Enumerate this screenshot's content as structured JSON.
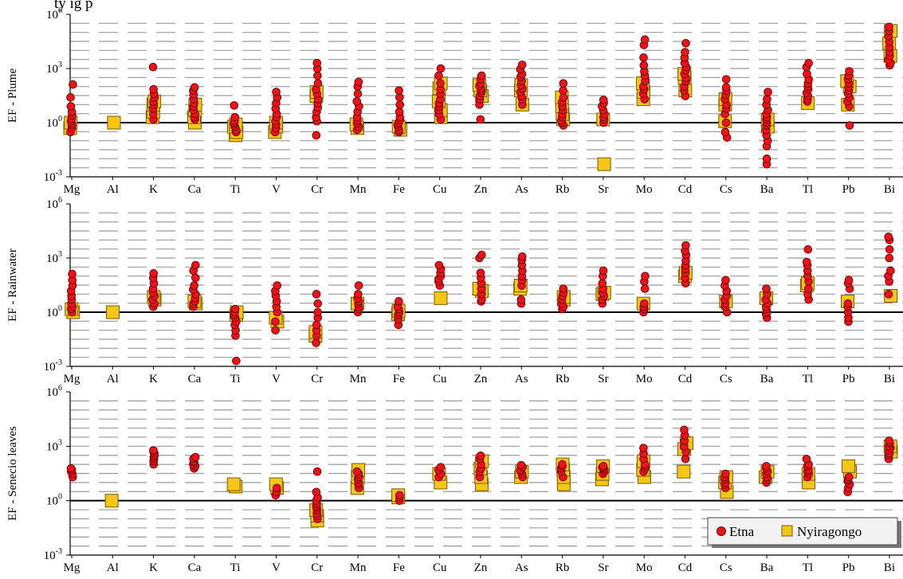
{
  "caption_fragment": "ty ig          p",
  "legend": {
    "etna_label": "Etna",
    "nyiragongo_label": "Nyiragongo"
  },
  "colors": {
    "etna_fill": "#e8151b",
    "etna_stroke": "#7a0000",
    "nyiragongo_fill": "#f5c518",
    "nyiragongo_stroke": "#7a5a00",
    "grid_dash": "#9a9a9a",
    "unity_line": "#000000"
  },
  "chart_data": [
    {
      "type": "scatter",
      "ylabel": "EF - Plume",
      "yscale": "log",
      "ylim": [
        0.001,
        1000000
      ],
      "grid": true,
      "categories": [
        "Mg",
        "Al",
        "K",
        "Ca",
        "Ti",
        "V",
        "Cr",
        "Mn",
        "Fe",
        "Cu",
        "Zn",
        "As",
        "Rb",
        "Sr",
        "Mo",
        "Cd",
        "Cs",
        "Ba",
        "Tl",
        "Pb",
        "Bi"
      ],
      "series": [
        {
          "name": "Etna",
          "points": {
            "Mg": [
              0.3,
              0.5,
              0.7,
              0.9,
              1.2,
              1.6,
              2.5,
              4,
              8,
              25,
              130
            ],
            "K": [
              1.5,
              3,
              6,
              10,
              15,
              25,
              40,
              70,
              1200
            ],
            "Ca": [
              1.5,
              2,
              3,
              5,
              8,
              12,
              20,
              35,
              60,
              90
            ],
            "Ti": [
              0.3,
              0.4,
              0.6,
              0.8,
              1,
              1.3,
              2,
              9
            ],
            "V": [
              0.3,
              0.5,
              0.8,
              1.2,
              2,
              3,
              6,
              12,
              25,
              50
            ],
            "Cr": [
              0.2,
              1.2,
              2,
              4,
              7,
              12,
              20,
              40,
              70,
              150,
              400,
              1000,
              2000
            ],
            "Mn": [
              0.4,
              0.6,
              0.9,
              1.3,
              2,
              4,
              8,
              15,
              40,
              100,
              180
            ],
            "Fe": [
              0.3,
              0.4,
              0.6,
              0.8,
              1,
              1.4,
              2,
              4,
              10,
              25,
              60
            ],
            "Cu": [
              1.5,
              3,
              5,
              8,
              12,
              20,
              40,
              70,
              150,
              400,
              1000
            ],
            "Zn": [
              1.5,
              10,
              20,
              30,
              45,
              60,
              80,
              110,
              150,
              250,
              400
            ],
            "As": [
              10,
              20,
              30,
              50,
              80,
              120,
              200,
              350,
              500,
              900,
              1600
            ],
            "Rb": [
              0.7,
              1,
              1.3,
              2,
              3,
              5,
              8,
              14,
              25,
              60,
              150
            ],
            "Sr": [
              1,
              1.5,
              2,
              3,
              5,
              8,
              12,
              18
            ],
            "Mo": [
              20,
              40,
              70,
              100,
              200,
              400,
              700,
              1500,
              4000,
              20000,
              40000
            ],
            "Cd": [
              30,
              60,
              100,
              200,
              300,
              500,
              800,
              1200,
              2000,
              4000,
              8000,
              25000
            ],
            "Cs": [
              0.15,
              0.3,
              1,
              3,
              6,
              10,
              20,
              35,
              60,
              90,
              250
            ],
            "Ba": [
              0.005,
              0.01,
              0.05,
              0.1,
              0.2,
              0.4,
              0.7,
              1,
              1.5,
              2,
              3,
              5,
              10,
              20,
              50
            ],
            "Tl": [
              15,
              20,
              30,
              45,
              70,
              100,
              150,
              250,
              500,
              1200,
              2000
            ],
            "Pb": [
              0.7,
              8,
              15,
              25,
              40,
              60,
              90,
              150,
              250,
              400,
              700
            ],
            "Bi": [
              1500,
              2000,
              3000,
              5000,
              8000,
              15000,
              30000,
              60000,
              120000,
              200000
            ]
          }
        },
        {
          "name": "Nyiragongo",
          "points": {
            "Mg": [
              0.5,
              1
            ],
            "Al": [
              1
            ],
            "K": [
              2,
              4,
              10,
              15
            ],
            "Ca": [
              1,
              2,
              5,
              10
            ],
            "Ti": [
              0.2,
              0.3,
              0.6,
              0.8
            ],
            "V": [
              0.3,
              0.6,
              1
            ],
            "Cr": [
              30,
              50
            ],
            "Mn": [
              0.5,
              0.8
            ],
            "Fe": [
              0.4,
              0.6
            ],
            "Cu": [
              2,
              5,
              15,
              80,
              150
            ],
            "Zn": [
              30,
              60,
              120
            ],
            "As": [
              10,
              60,
              120
            ],
            "Rb": [
              1.5,
              3,
              8,
              25
            ],
            "Sr": [
              0.005,
              1.5
            ],
            "Mo": [
              20,
              50,
              150
            ],
            "Cd": [
              60,
              300,
              500
            ],
            "Cs": [
              1.2,
              10,
              20
            ],
            "Ba": [
              0.6,
              1.5
            ],
            "Tl": [
              12
            ],
            "Pb": [
              10,
              100,
              200
            ],
            "Bi": [
              5000,
              25000,
              120000
            ]
          }
        }
      ]
    },
    {
      "type": "scatter",
      "ylabel": "EF - Rainwater",
      "yscale": "log",
      "ylim": [
        0.001,
        1000000
      ],
      "grid": true,
      "categories": [
        "Mg",
        "Al",
        "K",
        "Ca",
        "Ti",
        "V",
        "Cr",
        "Mn",
        "Fe",
        "Cu",
        "Zn",
        "As",
        "Rb",
        "Sr",
        "Mo",
        "Cd",
        "Cs",
        "Ba",
        "Tl",
        "Pb",
        "Bi"
      ],
      "series": [
        {
          "name": "Etna",
          "points": {
            "Mg": [
              1,
              1.5,
              2,
              3,
              5,
              8,
              15,
              30,
              60,
              130
            ],
            "K": [
              2,
              3,
              5,
              8,
              12,
              20,
              40,
              80,
              140
            ],
            "Ca": [
              2,
              3,
              4,
              6,
              10,
              18,
              30,
              80,
              200,
              400
            ],
            "Ti": [
              0.002,
              0.05,
              0.1,
              0.2,
              0.3,
              0.5,
              0.7,
              1,
              1.5
            ],
            "V": [
              0.1,
              0.3,
              1,
              2,
              4,
              8,
              15,
              30
            ],
            "Cr": [
              0.02,
              0.05,
              0.1,
              0.2,
              0.5,
              1,
              3,
              10
            ],
            "Mn": [
              1,
              1.5,
              2,
              3,
              4,
              6,
              10,
              30
            ],
            "Fe": [
              0.2,
              0.4,
              0.7,
              1,
              1.5,
              2,
              4
            ],
            "Cu": [
              30,
              50,
              70,
              100,
              150,
              250,
              400
            ],
            "Zn": [
              4,
              5,
              10,
              20,
              40,
              80,
              150,
              1000,
              1500
            ],
            "As": [
              3,
              5,
              30,
              60,
              100,
              200,
              400,
              800,
              1200
            ],
            "Rb": [
              1.5,
              2,
              3,
              5,
              8,
              12,
              20
            ],
            "Sr": [
              3,
              5,
              8,
              12,
              20,
              40,
              100,
              200
            ],
            "Mo": [
              1,
              1.5,
              2,
              3,
              20,
              50,
              100
            ],
            "Cd": [
              40,
              80,
              150,
              250,
              400,
              700,
              1500,
              2500,
              5000
            ],
            "Cs": [
              1,
              2,
              3,
              5,
              8,
              15,
              30,
              60
            ],
            "Ba": [
              0.5,
              0.8,
              1,
              1.5,
              2,
              3,
              5,
              10,
              20
            ],
            "Tl": [
              5,
              10,
              20,
              50,
              100,
              200,
              400,
              600,
              3000
            ],
            "Pb": [
              0.3,
              0.5,
              1,
              2,
              3,
              20,
              40,
              60
            ],
            "Bi": [
              10,
              50,
              100,
              200,
              1000,
              3000,
              10000,
              15000
            ]
          }
        },
        {
          "name": "Nyiragongo",
          "points": {
            "Mg": [
              1,
              1.5
            ],
            "Al": [
              1
            ],
            "K": [
              5,
              7
            ],
            "Ca": [
              3,
              4
            ],
            "Ti": [
              0.7,
              1
            ],
            "V": [
              0.3,
              0.5
            ],
            "Cr": [
              0.05,
              0.08
            ],
            "Mn": [
              3
            ],
            "Fe": [
              0.8,
              1.2
            ],
            "Cu": [
              6
            ],
            "Zn": [
              15,
              20
            ],
            "As": [
              20,
              30
            ],
            "Rb": [
              5,
              7
            ],
            "Sr": [
              10,
              12
            ],
            "Mo": [
              3
            ],
            "Cd": [
              100,
              150
            ],
            "Cs": [
              4
            ],
            "Ba": [
              6
            ],
            "Tl": [
              30,
              40
            ],
            "Pb": [
              4
            ],
            "Bi": [
              8
            ]
          }
        }
      ]
    },
    {
      "type": "scatter",
      "ylabel": "EF - Senecio leaves",
      "yscale": "log",
      "ylim": [
        0.001,
        1000000
      ],
      "grid": true,
      "legend": "bottom-right",
      "categories": [
        "Mg",
        "Al",
        "K",
        "Ca",
        "Ti",
        "V",
        "Cr",
        "Mn",
        "Fe",
        "Cu",
        "Zn",
        "As",
        "Rb",
        "Sr",
        "Mo",
        "Cd",
        "Cs",
        "Ba",
        "Tl",
        "Pb",
        "Bi"
      ],
      "series": [
        {
          "name": "Etna",
          "points": {
            "Mg": [
              20,
              30,
              40,
              50,
              60
            ],
            "K": [
              100,
              150,
              200,
              250,
              300,
              400,
              500,
              600
            ],
            "Ca": [
              60,
              80,
              100,
              120,
              150,
              200,
              250
            ],
            "V": [
              2,
              3,
              5
            ],
            "Cr": [
              0.1,
              0.15,
              0.2,
              0.3,
              0.4,
              0.5,
              0.7,
              1,
              1.5,
              3,
              40
            ],
            "Mn": [
              5,
              8,
              10,
              15,
              20,
              30,
              40
            ],
            "Fe": [
              1,
              1.5,
              2
            ],
            "Cu": [
              20,
              30,
              50,
              70
            ],
            "Zn": [
              20,
              40,
              60,
              100,
              200,
              300
            ],
            "As": [
              20,
              30,
              40,
              50,
              70,
              90
            ],
            "Rb": [
              20,
              40,
              60,
              80,
              100
            ],
            "Sr": [
              30,
              40,
              50,
              60,
              70,
              80
            ],
            "Mo": [
              40,
              60,
              80,
              100,
              200,
              400,
              800
            ],
            "Cd": [
              200,
              500,
              1000,
              2000,
              4000,
              8000
            ],
            "Cs": [
              5,
              8,
              10,
              15,
              20,
              30
            ],
            "Ba": [
              10,
              15,
              20,
              30,
              40,
              60,
              80
            ],
            "Tl": [
              20,
              30,
              40,
              50,
              80,
              100,
              200
            ],
            "Pb": [
              3,
              5,
              8,
              12,
              15,
              20
            ],
            "Bi": [
              200,
              300,
              400,
              600,
              800,
              1000,
              1500,
              2000
            ]
          }
        },
        {
          "name": "Nyiragongo",
          "points": {
            "Al": [
              1
            ],
            "Ti": [
              6,
              8
            ],
            "V": [
              5,
              8
            ],
            "Cr": [
              0.08,
              0.15,
              0.3
            ],
            "Mn": [
              5,
              20,
              50
            ],
            "Fe": [
              1.5,
              2
            ],
            "Cu": [
              10,
              30
            ],
            "Zn": [
              8,
              20,
              60,
              150
            ],
            "As": [
              20,
              40
            ],
            "Rb": [
              8,
              20,
              50,
              100
            ],
            "Sr": [
              15,
              30,
              80
            ],
            "Mo": [
              20,
              50,
              150
            ],
            "Cd": [
              40,
              700,
              1500
            ],
            "Cs": [
              3,
              10,
              20
            ],
            "Ba": [
              20,
              40
            ],
            "Tl": [
              10,
              30
            ],
            "Pb": [
              40,
              80
            ],
            "Bi": [
              500,
              1000
            ]
          }
        }
      ]
    }
  ]
}
